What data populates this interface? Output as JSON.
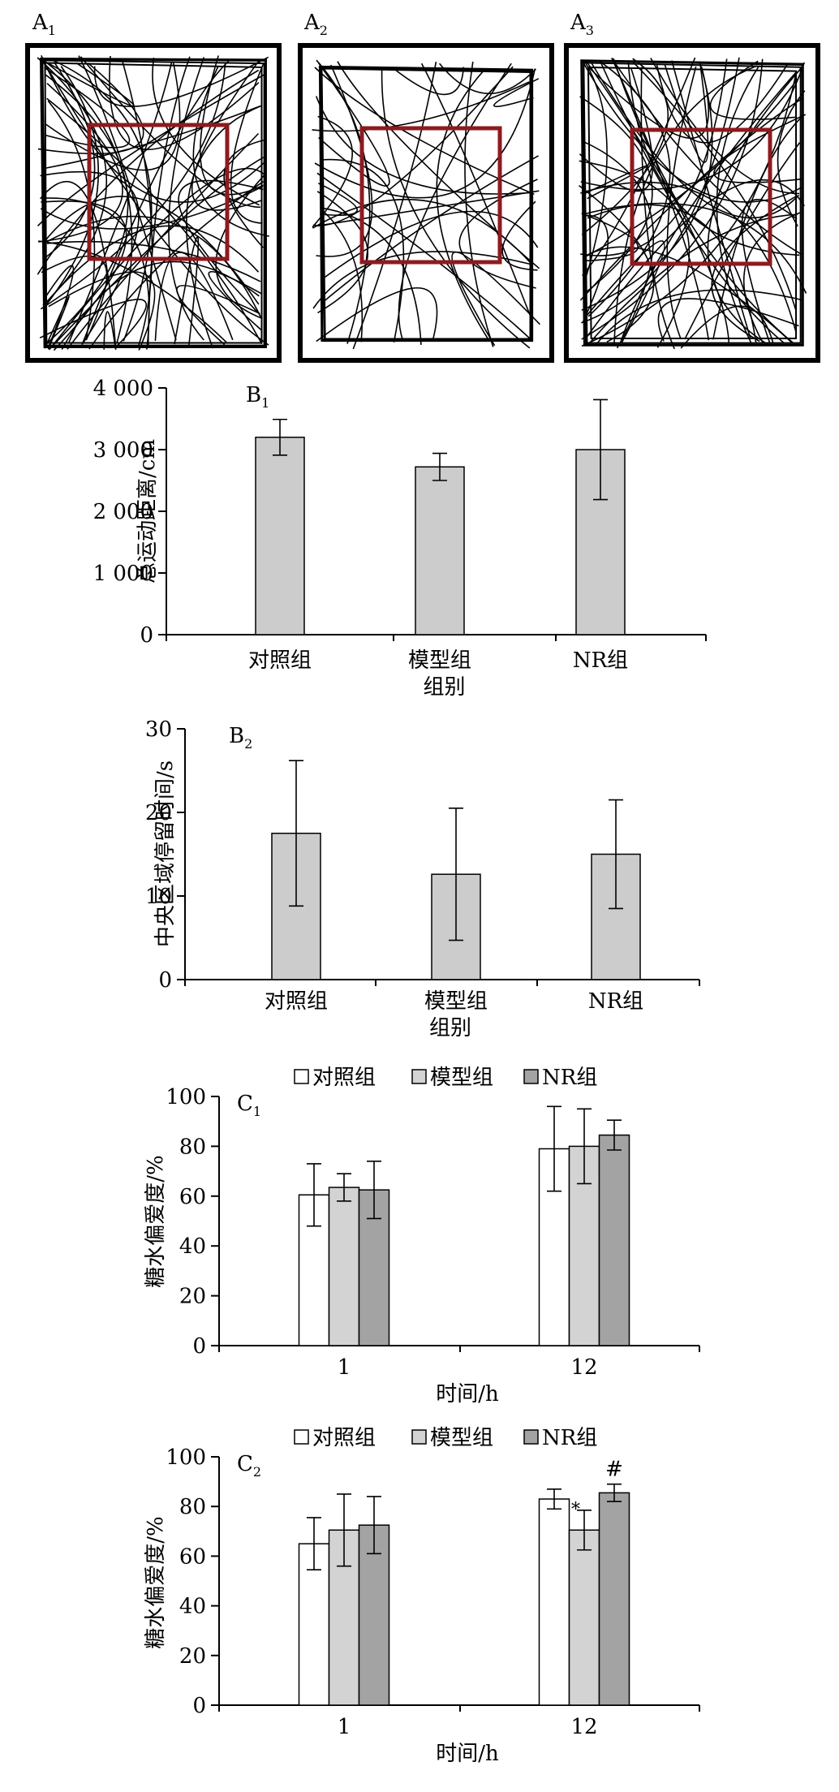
{
  "panelsA": [
    {
      "label": "A",
      "sub": "1"
    },
    {
      "label": "A",
      "sub": "2"
    },
    {
      "label": "A",
      "sub": "3"
    }
  ],
  "colors": {
    "bar_gray": "#cccccc",
    "bar_white": "#ffffff",
    "bar_light": "#d3d3d3",
    "bar_dark": "#a3a3a3",
    "roi_box": "#8e1a1f",
    "frame": "#000000"
  },
  "chart_data": [
    {
      "type": "bar",
      "panel_label": "B",
      "panel_sub": "1",
      "categories": [
        "对照组",
        "模型组",
        "NR组"
      ],
      "values": [
        3200,
        2720,
        3000
      ],
      "errors": [
        290,
        220,
        810
      ],
      "ylabel": "总运动距离/cm",
      "xlabel": "组别",
      "ylim": [
        0,
        4000
      ],
      "yticks": [
        0,
        1000,
        2000,
        3000,
        4000
      ],
      "ytick_labels": [
        "0",
        "1 000",
        "2 000",
        "3 000",
        "4 000"
      ]
    },
    {
      "type": "bar",
      "panel_label": "B",
      "panel_sub": "2",
      "categories": [
        "对照组",
        "模型组",
        "NR组"
      ],
      "values": [
        17.5,
        12.6,
        15.0
      ],
      "errors": [
        8.7,
        7.9,
        6.5
      ],
      "ylabel": "中央区域停留时间/s",
      "xlabel": "组别",
      "ylim": [
        0,
        30
      ],
      "yticks": [
        0,
        10,
        20,
        30
      ],
      "ytick_labels": [
        "0",
        "10",
        "20",
        "30"
      ]
    },
    {
      "type": "bar",
      "panel_label": "C",
      "panel_sub": "1",
      "categories": [
        "1",
        "12"
      ],
      "series": [
        {
          "name": "对照组",
          "values": [
            60.5,
            79
          ],
          "errors": [
            12.5,
            17
          ],
          "marks": [
            "",
            ""
          ]
        },
        {
          "name": "模型组",
          "values": [
            63.5,
            80
          ],
          "errors": [
            5.5,
            15
          ],
          "marks": [
            "",
            ""
          ]
        },
        {
          "name": "NR组",
          "values": [
            62.5,
            84.5
          ],
          "errors": [
            11.5,
            6
          ],
          "marks": [
            "",
            ""
          ]
        }
      ],
      "ylabel": "糖水偏爱度/%",
      "xlabel": "时间/h",
      "ylim": [
        0,
        100
      ],
      "yticks": [
        0,
        20,
        40,
        60,
        80,
        100
      ],
      "legend": "top"
    },
    {
      "type": "bar",
      "panel_label": "C",
      "panel_sub": "2",
      "categories": [
        "1",
        "12"
      ],
      "series": [
        {
          "name": "对照组",
          "values": [
            65,
            83
          ],
          "errors": [
            10.5,
            4
          ],
          "marks": [
            "",
            ""
          ]
        },
        {
          "name": "模型组",
          "values": [
            70.5,
            70.5
          ],
          "errors": [
            14.5,
            8
          ],
          "marks": [
            "",
            "*"
          ]
        },
        {
          "name": "NR组",
          "values": [
            72.5,
            85.5
          ],
          "errors": [
            11.5,
            3.5
          ],
          "marks": [
            "",
            "#"
          ]
        }
      ],
      "ylabel": "糖水偏爱度/%",
      "xlabel": "时间/h",
      "ylim": [
        0,
        100
      ],
      "yticks": [
        0,
        20,
        40,
        60,
        80,
        100
      ],
      "legend": "top"
    }
  ]
}
